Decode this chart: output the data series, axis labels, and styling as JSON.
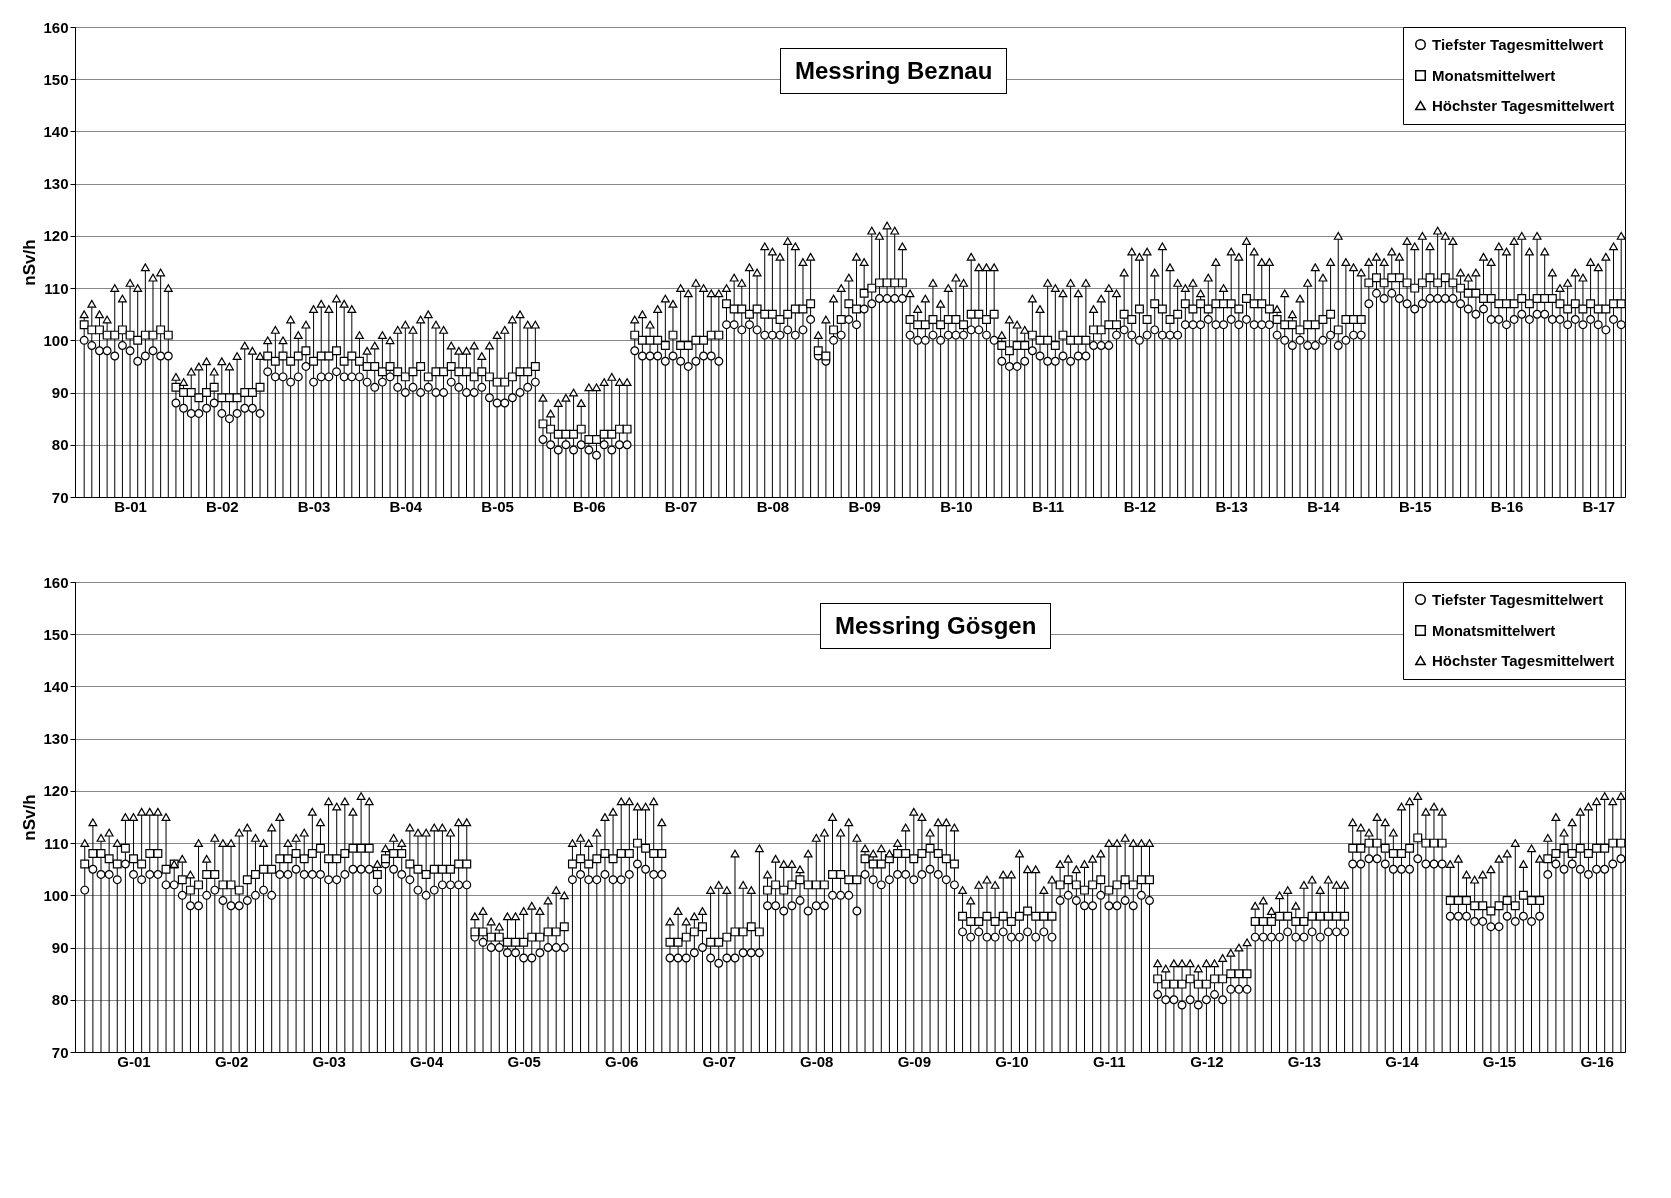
{
  "chart_data": [
    {
      "type": "scatter",
      "title": "Messring Beznau",
      "ylabel": "nSv/h",
      "ylim": [
        70,
        160
      ],
      "yticks": [
        70,
        80,
        90,
        100,
        110,
        120,
        130,
        140,
        150,
        160
      ],
      "grid": true,
      "legend": "top right",
      "categories": [
        null,
        null,
        null,
        null,
        null,
        null,
        "B-01",
        null,
        null,
        null,
        null,
        null,
        null,
        null,
        null,
        null,
        null,
        null,
        "B-02",
        null,
        null,
        null,
        null,
        null,
        null,
        null,
        null,
        null,
        null,
        null,
        "B-03",
        null,
        null,
        null,
        null,
        null,
        null,
        null,
        null,
        null,
        null,
        null,
        "B-04",
        null,
        null,
        null,
        null,
        null,
        null,
        null,
        null,
        null,
        null,
        null,
        "B-05",
        null,
        null,
        null,
        null,
        null,
        null,
        null,
        null,
        null,
        null,
        null,
        "B-06",
        null,
        null,
        null,
        null,
        null,
        null,
        null,
        null,
        null,
        null,
        null,
        "B-07",
        null,
        null,
        null,
        null,
        null,
        null,
        null,
        null,
        null,
        null,
        null,
        "B-08",
        null,
        null,
        null,
        null,
        null,
        null,
        null,
        null,
        null,
        null,
        null,
        "B-09",
        null,
        null,
        null,
        null,
        null,
        null,
        null,
        null,
        null,
        null,
        null,
        "B-10",
        null,
        null,
        null,
        null,
        null,
        null,
        null,
        null,
        null,
        null,
        null,
        "B-11",
        null,
        null,
        null,
        null,
        null,
        null,
        null,
        null,
        null,
        null,
        null,
        "B-12",
        null,
        null,
        null,
        null,
        null,
        null,
        null,
        null,
        null,
        null,
        null,
        "B-13",
        null,
        null,
        null,
        null,
        null,
        null,
        null,
        null,
        null,
        null,
        null,
        "B-14",
        null,
        null,
        null,
        null,
        null,
        null,
        null,
        null,
        null,
        null,
        null,
        "B-15",
        null,
        null,
        null,
        null,
        null,
        null,
        null,
        null,
        null,
        null,
        null,
        "B-16",
        null,
        null,
        null,
        null,
        null,
        null,
        null,
        null,
        null,
        null,
        null,
        "B-17",
        null,
        null,
        null
      ],
      "series": [
        {
          "name": "Tiefster Tagesmittelwert",
          "type": "scatter",
          "marker": "circle",
          "color": "#000000",
          "values": [
            100,
            99,
            98,
            98,
            97,
            99,
            98,
            96,
            97,
            98,
            97,
            97,
            88,
            87,
            86,
            86,
            87,
            88,
            86,
            85,
            86,
            87,
            87,
            86,
            94,
            93,
            93,
            92,
            93,
            95,
            92,
            93,
            93,
            94,
            93,
            93,
            93,
            92,
            91,
            92,
            93,
            91,
            90,
            91,
            90,
            91,
            90,
            90,
            92,
            91,
            90,
            90,
            91,
            89,
            88,
            88,
            89,
            90,
            91,
            92,
            81,
            80,
            79,
            80,
            79,
            80,
            79,
            78,
            80,
            79,
            80,
            80,
            98,
            97,
            97,
            97,
            96,
            97,
            96,
            95,
            96,
            97,
            97,
            96,
            103,
            103,
            102,
            103,
            102,
            101,
            101,
            101,
            102,
            101,
            102,
            104,
            97,
            96,
            100,
            101,
            104,
            103,
            106,
            107,
            108,
            108,
            108,
            108,
            101,
            100,
            100,
            101,
            100,
            101,
            101,
            101,
            102,
            102,
            101,
            100,
            96,
            95,
            95,
            96,
            98,
            97,
            96,
            96,
            97,
            96,
            97,
            97,
            99,
            99,
            99,
            101,
            102,
            101,
            100,
            101,
            102,
            101,
            101,
            101,
            103,
            103,
            103,
            104,
            103,
            103,
            104,
            103,
            104,
            103,
            103,
            103,
            101,
            100,
            99,
            100,
            99,
            99,
            100,
            101,
            99,
            100,
            101,
            101,
            107,
            109,
            108,
            109,
            108,
            107,
            106,
            107,
            108,
            108,
            108,
            108,
            107,
            106,
            105,
            106,
            104,
            104,
            103,
            104,
            105,
            104,
            105,
            105,
            104,
            104,
            103,
            104,
            103,
            104,
            103,
            102,
            104,
            103
          ]
        },
        {
          "name": "Monatsmittelwert",
          "type": "scatter",
          "marker": "square",
          "color": "#000000",
          "values": [
            103,
            102,
            102,
            101,
            101,
            102,
            101,
            100,
            101,
            101,
            102,
            101,
            91,
            90,
            90,
            89,
            90,
            91,
            89,
            89,
            89,
            90,
            90,
            91,
            97,
            96,
            97,
            96,
            97,
            98,
            96,
            97,
            97,
            98,
            96,
            97,
            96,
            95,
            95,
            94,
            95,
            94,
            93,
            94,
            95,
            93,
            94,
            94,
            95,
            94,
            94,
            93,
            94,
            93,
            92,
            92,
            93,
            94,
            94,
            95,
            84,
            83,
            82,
            82,
            82,
            83,
            81,
            81,
            82,
            82,
            83,
            83,
            101,
            100,
            100,
            100,
            99,
            101,
            99,
            99,
            100,
            100,
            101,
            101,
            107,
            106,
            106,
            105,
            106,
            105,
            105,
            104,
            105,
            106,
            106,
            107,
            98,
            97,
            102,
            104,
            107,
            106,
            109,
            110,
            111,
            111,
            111,
            111,
            104,
            103,
            103,
            104,
            103,
            104,
            104,
            103,
            105,
            105,
            104,
            105,
            99,
            98,
            99,
            99,
            101,
            100,
            100,
            99,
            101,
            100,
            100,
            100,
            102,
            102,
            103,
            103,
            105,
            104,
            106,
            104,
            107,
            106,
            104,
            105,
            107,
            106,
            107,
            106,
            107,
            107,
            107,
            106,
            108,
            107,
            107,
            106,
            104,
            103,
            103,
            102,
            103,
            103,
            104,
            105,
            102,
            104,
            104,
            104,
            111,
            112,
            111,
            112,
            112,
            111,
            110,
            111,
            112,
            111,
            112,
            111,
            110,
            109,
            109,
            108,
            108,
            107,
            107,
            107,
            108,
            107,
            108,
            108,
            108,
            107,
            106,
            107,
            106,
            107,
            106,
            106,
            107,
            107
          ]
        },
        {
          "name": "Höchster Tagesmittelwert",
          "type": "lollipop",
          "marker": "triangle",
          "color": "#000000",
          "values": [
            105,
            107,
            105,
            104,
            110,
            108,
            111,
            110,
            114,
            112,
            113,
            110,
            93,
            92,
            94,
            95,
            96,
            94,
            96,
            95,
            97,
            99,
            98,
            97,
            100,
            102,
            100,
            104,
            101,
            103,
            106,
            107,
            106,
            108,
            107,
            106,
            101,
            98,
            99,
            101,
            100,
            102,
            103,
            102,
            104,
            105,
            103,
            102,
            99,
            98,
            98,
            99,
            97,
            99,
            101,
            102,
            104,
            105,
            103,
            103,
            89,
            86,
            88,
            89,
            90,
            88,
            91,
            91,
            92,
            93,
            92,
            92,
            104,
            105,
            103,
            106,
            108,
            107,
            110,
            109,
            111,
            110,
            109,
            109,
            110,
            112,
            111,
            114,
            113,
            118,
            117,
            116,
            119,
            118,
            115,
            116,
            101,
            104,
            108,
            110,
            112,
            116,
            115,
            121,
            120,
            122,
            121,
            118,
            109,
            106,
            108,
            111,
            107,
            110,
            112,
            111,
            116,
            114,
            114,
            114,
            101,
            104,
            103,
            102,
            108,
            106,
            111,
            110,
            109,
            111,
            109,
            111,
            106,
            108,
            110,
            109,
            113,
            117,
            116,
            117,
            113,
            118,
            114,
            111,
            110,
            111,
            109,
            112,
            115,
            110,
            117,
            116,
            119,
            117,
            115,
            115,
            106,
            109,
            105,
            108,
            111,
            114,
            112,
            115,
            120,
            115,
            114,
            113,
            115,
            116,
            115,
            117,
            116,
            119,
            118,
            120,
            118,
            121,
            120,
            119,
            113,
            112,
            113,
            116,
            115,
            118,
            117,
            119,
            120,
            117,
            120,
            117,
            113,
            110,
            111,
            113,
            112,
            115,
            114,
            116,
            118,
            120
          ]
        }
      ]
    },
    {
      "type": "scatter",
      "title": "Messring Gösgen",
      "ylabel": "nSv/h",
      "ylim": [
        70,
        160
      ],
      "yticks": [
        70,
        80,
        90,
        100,
        110,
        120,
        130,
        140,
        150,
        160
      ],
      "grid": true,
      "legend": "top right",
      "categories": [
        null,
        null,
        null,
        null,
        null,
        null,
        "G-01",
        null,
        null,
        null,
        null,
        null,
        null,
        null,
        null,
        null,
        null,
        null,
        "G-02",
        null,
        null,
        null,
        null,
        null,
        null,
        null,
        null,
        null,
        null,
        null,
        "G-03",
        null,
        null,
        null,
        null,
        null,
        null,
        null,
        null,
        null,
        null,
        null,
        "G-04",
        null,
        null,
        null,
        null,
        null,
        null,
        null,
        null,
        null,
        null,
        null,
        "G-05",
        null,
        null,
        null,
        null,
        null,
        null,
        null,
        null,
        null,
        null,
        null,
        "G-06",
        null,
        null,
        null,
        null,
        null,
        null,
        null,
        null,
        null,
        null,
        null,
        "G-07",
        null,
        null,
        null,
        null,
        null,
        null,
        null,
        null,
        null,
        null,
        null,
        "G-08",
        null,
        null,
        null,
        null,
        null,
        null,
        null,
        null,
        null,
        null,
        null,
        "G-09",
        null,
        null,
        null,
        null,
        null,
        null,
        null,
        null,
        null,
        null,
        null,
        "G-10",
        null,
        null,
        null,
        null,
        null,
        null,
        null,
        null,
        null,
        null,
        null,
        "G-11",
        null,
        null,
        null,
        null,
        null,
        null,
        null,
        null,
        null,
        null,
        null,
        "G-12",
        null,
        null,
        null,
        null,
        null,
        null,
        null,
        null,
        null,
        null,
        null,
        "G-13",
        null,
        null,
        null,
        null,
        null,
        null,
        null,
        null,
        null,
        null,
        null,
        "G-14",
        null,
        null,
        null,
        null,
        null,
        null,
        null,
        null,
        null,
        null,
        null,
        "G-15",
        null,
        null,
        null,
        null,
        null,
        null,
        null,
        null,
        null,
        null,
        null,
        "G-16",
        null,
        null,
        null
      ],
      "series": [
        {
          "name": "Tiefster Tagesmittelwert",
          "type": "scatter",
          "marker": "circle",
          "color": "#000000",
          "values": [
            101,
            105,
            104,
            104,
            103,
            106,
            104,
            103,
            104,
            104,
            102,
            102,
            100,
            98,
            98,
            100,
            101,
            99,
            98,
            98,
            99,
            100,
            101,
            100,
            104,
            104,
            105,
            104,
            104,
            104,
            103,
            103,
            104,
            105,
            105,
            105,
            101,
            106,
            105,
            104,
            103,
            101,
            100,
            101,
            102,
            102,
            102,
            102,
            92,
            91,
            90,
            90,
            89,
            89,
            88,
            88,
            89,
            90,
            90,
            90,
            103,
            104,
            103,
            103,
            104,
            103,
            103,
            104,
            106,
            105,
            104,
            104,
            88,
            88,
            88,
            89,
            90,
            88,
            87,
            88,
            88,
            89,
            89,
            89,
            98,
            98,
            97,
            98,
            99,
            97,
            98,
            98,
            100,
            100,
            100,
            97,
            104,
            103,
            102,
            103,
            104,
            104,
            103,
            104,
            105,
            104,
            103,
            102,
            93,
            92,
            93,
            92,
            92,
            93,
            92,
            92,
            93,
            92,
            93,
            92,
            99,
            100,
            99,
            98,
            98,
            100,
            98,
            98,
            99,
            98,
            100,
            99,
            81,
            80,
            80,
            79,
            80,
            79,
            80,
            81,
            80,
            82,
            82,
            82,
            92,
            92,
            92,
            92,
            93,
            92,
            92,
            93,
            92,
            93,
            93,
            93,
            106,
            106,
            107,
            107,
            106,
            105,
            105,
            105,
            107,
            106,
            106,
            106,
            96,
            96,
            96,
            95,
            95,
            94,
            94,
            96,
            95,
            96,
            95,
            96,
            104,
            106,
            105,
            106,
            105,
            104,
            105,
            105,
            106,
            107
          ]
        },
        {
          "name": "Monatsmittelwert",
          "type": "scatter",
          "marker": "square",
          "color": "#000000",
          "values": [
            106,
            108,
            108,
            107,
            106,
            109,
            107,
            106,
            108,
            108,
            105,
            106,
            103,
            101,
            102,
            104,
            104,
            102,
            102,
            101,
            103,
            104,
            105,
            105,
            107,
            107,
            108,
            107,
            108,
            109,
            107,
            107,
            108,
            109,
            109,
            109,
            104,
            107,
            108,
            108,
            106,
            105,
            104,
            105,
            105,
            105,
            106,
            106,
            93,
            93,
            92,
            92,
            91,
            91,
            91,
            92,
            92,
            93,
            93,
            94,
            106,
            107,
            106,
            107,
            108,
            107,
            108,
            108,
            110,
            109,
            108,
            108,
            91,
            91,
            92,
            93,
            94,
            91,
            91,
            92,
            93,
            93,
            94,
            93,
            101,
            102,
            101,
            102,
            103,
            102,
            102,
            102,
            104,
            104,
            103,
            103,
            107,
            106,
            106,
            107,
            108,
            108,
            107,
            108,
            109,
            108,
            107,
            106,
            96,
            95,
            95,
            96,
            95,
            96,
            95,
            96,
            97,
            96,
            96,
            96,
            102,
            103,
            102,
            101,
            102,
            103,
            101,
            102,
            103,
            102,
            103,
            103,
            84,
            83,
            83,
            83,
            84,
            83,
            83,
            84,
            84,
            85,
            85,
            85,
            95,
            95,
            95,
            96,
            96,
            95,
            95,
            96,
            96,
            96,
            96,
            96,
            109,
            109,
            110,
            110,
            109,
            108,
            108,
            109,
            111,
            110,
            110,
            110,
            99,
            99,
            99,
            98,
            98,
            97,
            98,
            99,
            98,
            100,
            99,
            99,
            107,
            108,
            109,
            108,
            109,
            108,
            109,
            109,
            110,
            110
          ]
        },
        {
          "name": "Höchster Tagesmittelwert",
          "type": "lollipop",
          "marker": "triangle",
          "color": "#000000",
          "values": [
            110,
            114,
            111,
            112,
            110,
            115,
            115,
            116,
            116,
            116,
            115,
            106,
            107,
            104,
            110,
            107,
            111,
            110,
            110,
            112,
            113,
            111,
            110,
            113,
            115,
            110,
            111,
            112,
            116,
            114,
            118,
            117,
            118,
            116,
            119,
            118,
            106,
            109,
            111,
            110,
            113,
            112,
            112,
            113,
            113,
            112,
            114,
            114,
            96,
            97,
            95,
            94,
            96,
            96,
            97,
            98,
            97,
            99,
            101,
            100,
            110,
            111,
            110,
            112,
            115,
            116,
            118,
            118,
            117,
            117,
            118,
            114,
            95,
            97,
            95,
            96,
            97,
            101,
            102,
            101,
            108,
            102,
            101,
            109,
            104,
            107,
            106,
            106,
            105,
            108,
            111,
            112,
            115,
            112,
            114,
            111,
            109,
            108,
            109,
            108,
            110,
            113,
            116,
            115,
            112,
            114,
            114,
            113,
            101,
            99,
            102,
            103,
            102,
            104,
            104,
            108,
            105,
            105,
            101,
            103,
            106,
            107,
            105,
            106,
            107,
            108,
            110,
            110,
            111,
            110,
            110,
            110,
            87,
            86,
            87,
            87,
            87,
            86,
            87,
            87,
            88,
            89,
            90,
            91,
            98,
            99,
            97,
            100,
            101,
            98,
            102,
            103,
            101,
            103,
            102,
            102,
            114,
            113,
            112,
            115,
            114,
            112,
            117,
            118,
            119,
            116,
            117,
            116,
            106,
            107,
            104,
            103,
            104,
            105,
            107,
            108,
            110,
            106,
            109,
            107,
            111,
            115,
            112,
            114,
            116,
            117,
            118,
            119,
            118,
            119
          ]
        }
      ]
    }
  ]
}
